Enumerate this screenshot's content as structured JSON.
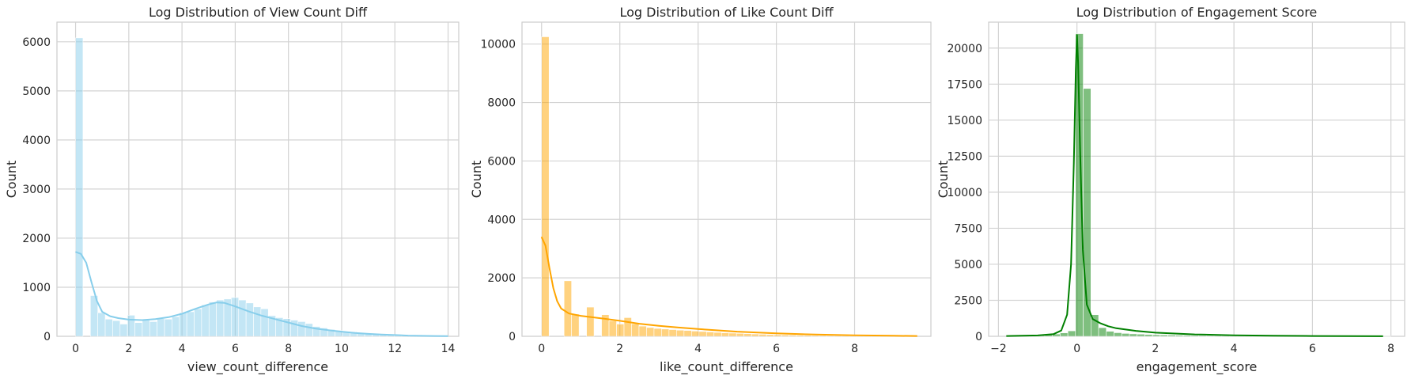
{
  "chart_data": [
    {
      "type": "histogram",
      "title": "Log Distribution of View Count Diff",
      "xlabel": "view_count_difference",
      "ylabel": "Count",
      "xlim": [
        -0.7,
        14.4
      ],
      "ylim": [
        0,
        6400
      ],
      "xticks": [
        0,
        2,
        4,
        6,
        8,
        10,
        12,
        14
      ],
      "yticks": [
        0,
        1000,
        2000,
        3000,
        4000,
        5000,
        6000
      ],
      "color": "#87ceeb",
      "grid": true,
      "bin_width": 0.2786,
      "bins_start": 0,
      "counts": [
        6080,
        0,
        830,
        480,
        350,
        320,
        250,
        430,
        280,
        330,
        300,
        360,
        350,
        400,
        480,
        500,
        560,
        640,
        700,
        740,
        760,
        790,
        740,
        680,
        600,
        560,
        420,
        380,
        360,
        330,
        300,
        260,
        200,
        170,
        140,
        120,
        100,
        90,
        70,
        60,
        55,
        45,
        40,
        35,
        30,
        25,
        22,
        20,
        15,
        12
      ],
      "kde": {
        "x": [
          0,
          0.2,
          0.4,
          0.6,
          0.8,
          1.0,
          1.3,
          1.6,
          2.0,
          2.5,
          3.0,
          3.5,
          4.0,
          4.5,
          5.0,
          5.3,
          5.6,
          6.0,
          6.5,
          7.0,
          7.5,
          8.0,
          8.5,
          9.0,
          9.5,
          10.0,
          10.5,
          11.0,
          11.5,
          12.0,
          12.5,
          13.0,
          13.5,
          14.0
        ],
        "y": [
          1720,
          1680,
          1500,
          1100,
          720,
          500,
          410,
          370,
          340,
          330,
          350,
          390,
          460,
          560,
          650,
          690,
          680,
          610,
          510,
          420,
          350,
          280,
          210,
          160,
          125,
          95,
          70,
          50,
          35,
          25,
          15,
          10,
          6,
          3
        ]
      }
    },
    {
      "type": "histogram",
      "title": "Log Distribution of Like Count Diff",
      "xlabel": "like_count_difference",
      "ylabel": "Count",
      "xlim": [
        -0.5,
        9.95
      ],
      "ylim": [
        0,
        10750
      ],
      "xticks": [
        0,
        2,
        4,
        6,
        8
      ],
      "yticks": [
        0,
        2000,
        4000,
        6000,
        8000,
        10000
      ],
      "color": "#ffa500",
      "grid": true,
      "bin_width": 0.1916,
      "bins_start": 0,
      "counts": [
        10250,
        0,
        0,
        1900,
        760,
        0,
        1000,
        0,
        740,
        530,
        420,
        640,
        430,
        350,
        300,
        270,
        250,
        230,
        210,
        200,
        180,
        165,
        150,
        135,
        120,
        110,
        100,
        90,
        80,
        70,
        60,
        55,
        50,
        45,
        40,
        35,
        30,
        28,
        25,
        22,
        20,
        18,
        16,
        14,
        12,
        10,
        9,
        8,
        7,
        6
      ],
      "kde": {
        "x": [
          0,
          0.1,
          0.2,
          0.3,
          0.4,
          0.5,
          0.7,
          1.0,
          1.5,
          2.0,
          2.5,
          3.0,
          3.5,
          4.0,
          5.0,
          6.0,
          7.0,
          8.0,
          9.0,
          9.6
        ],
        "y": [
          3400,
          3100,
          2350,
          1650,
          1200,
          950,
          780,
          700,
          620,
          530,
          430,
          360,
          300,
          250,
          160,
          100,
          60,
          35,
          18,
          10
        ]
      }
    },
    {
      "type": "histogram",
      "title": "Log Distribution of Engagement Score",
      "xlabel": "engagement_score",
      "ylabel": "Count",
      "xlim": [
        -2.25,
        8.35
      ],
      "ylim": [
        0,
        21800
      ],
      "xticks": [
        -2,
        0,
        2,
        4,
        6,
        8
      ],
      "yticks": [
        0,
        2500,
        5000,
        7500,
        10000,
        12500,
        15000,
        17500,
        20000
      ],
      "color": "#008000",
      "grid": true,
      "bin_width": 0.196,
      "bins_start": -1.8,
      "counts": [
        30,
        40,
        50,
        60,
        80,
        110,
        160,
        240,
        380,
        21000,
        17200,
        1500,
        600,
        350,
        250,
        200,
        170,
        150,
        130,
        110,
        100,
        90,
        80,
        70,
        60,
        55,
        50,
        45,
        40,
        35,
        30,
        28,
        26,
        24,
        22,
        20,
        18,
        16,
        14,
        12,
        11,
        10,
        9,
        8,
        7,
        6,
        5,
        4,
        3,
        2
      ],
      "kde": {
        "x": [
          -1.8,
          -1.0,
          -0.6,
          -0.4,
          -0.25,
          -0.15,
          -0.08,
          -0.03,
          0.0,
          0.03,
          0.08,
          0.15,
          0.25,
          0.4,
          0.6,
          0.8,
          1.0,
          1.5,
          2.0,
          3.0,
          4.0,
          5.0,
          6.0,
          7.0,
          7.8
        ],
        "y": [
          20,
          60,
          150,
          400,
          1500,
          5000,
          12000,
          18500,
          20900,
          19000,
          13000,
          6000,
          2200,
          1200,
          900,
          700,
          560,
          380,
          250,
          130,
          70,
          40,
          20,
          10,
          5
        ]
      }
    }
  ]
}
